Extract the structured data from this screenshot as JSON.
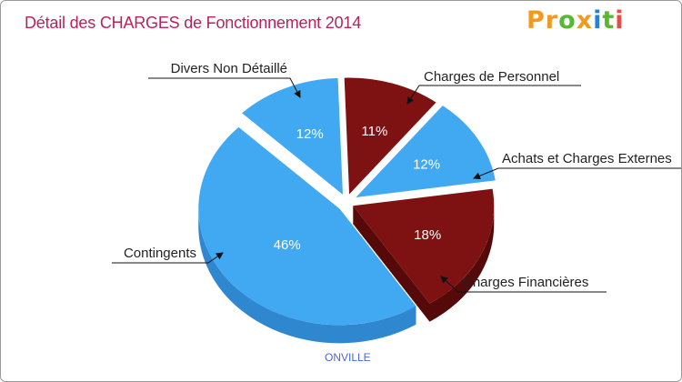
{
  "header": {
    "title": "Détail des CHARGES de Fonctionnement 2014",
    "brand": "Proxiti"
  },
  "footer": {
    "city": "ONVILLE"
  },
  "colors": {
    "blue": "#41a9f1",
    "blue_dark": "#2f87cf",
    "red": "#7e1212",
    "red_dark": "#560909",
    "title": "#b5245c",
    "city": "#4a66d8",
    "brand_letters": [
      "#f29a1f",
      "#f29a1f",
      "#58b830",
      "#f29a1f",
      "#2a7fd8",
      "#58b830",
      "#e84d45"
    ]
  },
  "chart_data": {
    "type": "pie",
    "title": "Détail des CHARGES de Fonctionnement 2014",
    "subtitle": "ONVILLE",
    "unit": "%",
    "slices": [
      {
        "label": "Charges de Personnel",
        "value": 11,
        "display": "11%",
        "color": "#7e1212"
      },
      {
        "label": "Achats et Charges Externes",
        "value": 12,
        "display": "12%",
        "color": "#41a9f1"
      },
      {
        "label": "Charges Financières",
        "value": 18,
        "display": "18%",
        "color": "#7e1212"
      },
      {
        "label": "Contingents",
        "value": 46,
        "display": "46%",
        "color": "#41a9f1"
      },
      {
        "label": "Divers Non Détaillé",
        "value": 12,
        "display": "12%",
        "color": "#41a9f1"
      }
    ]
  }
}
